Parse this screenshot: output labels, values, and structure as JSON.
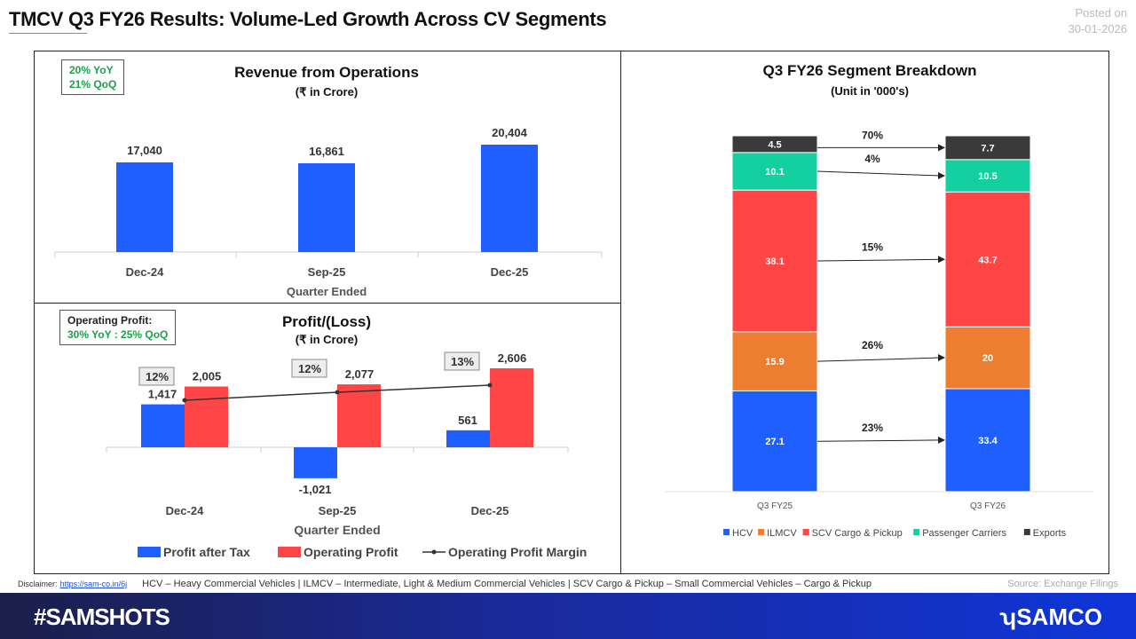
{
  "header": {
    "title": "TMCV Q3 FY26 Results: Volume-Led Growth Across CV Segments",
    "posted_label": "Posted on",
    "posted_date": "30-01-2026"
  },
  "chart_data": [
    {
      "type": "bar",
      "title": "Revenue from Operations",
      "subtitle": "(₹ in Crore)",
      "xlabel": "Quarter Ended",
      "categories": [
        "Dec-24",
        "Sep-25",
        "Dec-25"
      ],
      "values": [
        17040,
        16861,
        20404
      ],
      "data_labels": [
        "17,040",
        "16,861",
        "20,404"
      ],
      "color": "#1f5fff",
      "badge": [
        "20% YoY",
        "21% QoQ"
      ]
    },
    {
      "type": "bar",
      "title": "Profit/(Loss)",
      "subtitle": "(₹ in Crore)",
      "xlabel": "Quarter Ended",
      "categories": [
        "Dec-24",
        "Sep-25",
        "Dec-25"
      ],
      "series": [
        {
          "name": "Profit after Tax",
          "values": [
            1417,
            -1021,
            561
          ],
          "labels": [
            "1,417",
            "-1,021",
            "561"
          ],
          "color": "#1f5fff"
        },
        {
          "name": "Operating Profit",
          "values": [
            2005,
            2077,
            2606
          ],
          "labels": [
            "2,005",
            "2,077",
            "2,606"
          ],
          "color": "#ff4545"
        },
        {
          "name": "Operating Profit Margin",
          "type": "line",
          "values": [
            12,
            12,
            13
          ],
          "labels": [
            "12%",
            "12%",
            "13%"
          ],
          "color": "#333"
        }
      ],
      "badge": {
        "title": "Operating Profit:",
        "text": "30% YoY : 25% QoQ"
      }
    },
    {
      "type": "stacked-bar",
      "title": "Q3 FY26 Segment Breakdown",
      "subtitle": "(Unit in '000's)",
      "categories": [
        "Q3 FY25",
        "Q3 FY26"
      ],
      "series": [
        {
          "name": "HCV",
          "values": [
            27.1,
            33.4
          ],
          "color": "#1f5fff",
          "growth": "23%"
        },
        {
          "name": "ILMCV",
          "values": [
            15.9,
            20
          ],
          "color": "#ed7d31",
          "growth": "26%"
        },
        {
          "name": "SCV Cargo & Pickup",
          "values": [
            38.1,
            43.7
          ],
          "color": "#ff4545",
          "growth": "15%"
        },
        {
          "name": "Passenger Carriers",
          "values": [
            10.1,
            10.5
          ],
          "color": "#14cfa0",
          "growth": "4%"
        },
        {
          "name": "Exports",
          "values": [
            4.5,
            7.7
          ],
          "color": "#3a3a3a",
          "growth": "70%"
        }
      ],
      "legend": "bottom"
    }
  ],
  "footer": {
    "disclaimer_label": "Disclaimer:",
    "disclaimer_link": "https://sam-co.in/6j",
    "abbreviations": "HCV – Heavy Commercial Vehicles | ILMCV – Intermediate, Light & Medium Commercial Vehicles | SCV Cargo & Pickup – Small Commercial Vehicles – Cargo & Pickup",
    "source": "Source: Exchange Filings",
    "hashtag": "#SAMSHOTS",
    "brand": "SAMCO"
  }
}
